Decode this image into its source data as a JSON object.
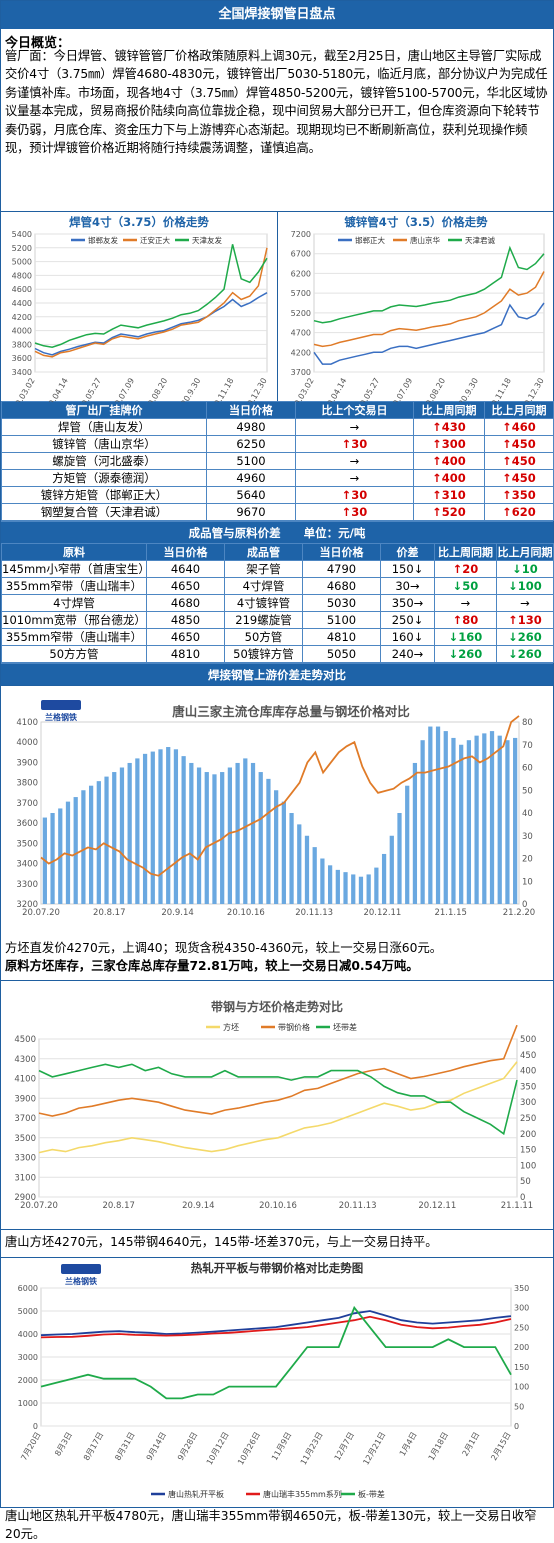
{
  "banner": "全国焊接钢管日盘点",
  "summary": {
    "title": "今日概览：",
    "text": "管厂面：今日焊管、镀锌管管厂价格政策随原料上调30元，截至2月25日，唐山地区主导管厂实际成交价4寸（3.75㎜）焊管4680-4830元，镀锌管出厂5030-5180元，临近月底，部分协议户为完成任务谨慎补库。市场面，现各地4寸（3.75㎜）焊管4850-5200元，镀锌管5100-5700元，华北区域协议量基本完成，贸易商报价陆续向高位靠拢企稳，现中间贸易大部分已开工，但仓库资源向下轮转节奏仍弱，月底仓库、资金压力下与上游博弈心态渐起。现期现均已不断刷新高位，获利兑现操作频现，预计焊镀管价格近期将随行持续震荡调整，谨慎追高。"
  },
  "colors": {
    "banner": "#1e63a8",
    "blue_line": "#3a6fc2",
    "orange_line": "#e07b28",
    "green_line": "#1faa4a",
    "yellow_line": "#f4d96a",
    "bar_blue": "#6aa8e0",
    "red_line": "#e01a1a",
    "navy_line": "#1f3f9a",
    "up": "#d40000",
    "down": "#00a040"
  },
  "chart_data": [
    {
      "type": "line",
      "title": "焊管4寸（3.75）价格走势",
      "x_ticks": [
        "20.03.02",
        "20.04.14",
        "20.05.27",
        "20.07.09",
        "20.08.20",
        "20.9.30",
        "20.11.18",
        "20.12.30"
      ],
      "ylim": [
        3400,
        5400
      ],
      "y_ticks": [
        3400,
        3600,
        3800,
        4000,
        4200,
        4400,
        4600,
        4800,
        5000,
        5200,
        5400
      ],
      "series": [
        {
          "name": "邯郸友发",
          "color": "#3a6fc2",
          "values": [
            3740,
            3680,
            3650,
            3700,
            3730,
            3770,
            3800,
            3830,
            3820,
            3900,
            3950,
            3930,
            3910,
            3950,
            3980,
            4000,
            4050,
            4100,
            4120,
            4150,
            4200,
            4280,
            4350,
            4450,
            4350,
            4400,
            4480,
            4550
          ]
        },
        {
          "name": "迁安正大",
          "color": "#e07b28",
          "values": [
            3700,
            3640,
            3620,
            3680,
            3700,
            3740,
            3780,
            3820,
            3800,
            3880,
            3920,
            3900,
            3880,
            3920,
            3950,
            3980,
            4020,
            4080,
            4100,
            4120,
            4200,
            4300,
            4400,
            4550,
            4450,
            4500,
            4650,
            5200
          ]
        },
        {
          "name": "天津友发",
          "color": "#1faa4a",
          "values": [
            3820,
            3780,
            3760,
            3800,
            3860,
            3900,
            3940,
            3960,
            3950,
            4020,
            4080,
            4060,
            4040,
            4080,
            4110,
            4140,
            4180,
            4230,
            4250,
            4290,
            4380,
            4480,
            4600,
            5250,
            4750,
            4700,
            4850,
            5050
          ]
        }
      ]
    },
    {
      "type": "line",
      "title": "镀锌管4寸（3.5）价格走势",
      "x_ticks": [
        "20.03.02",
        "20.04.14",
        "20.05.27",
        "20.07.09",
        "20.08.20",
        "20.9.30",
        "20.11.18",
        "20.12.30"
      ],
      "ylim": [
        3700,
        7200
      ],
      "y_ticks": [
        3700,
        4200,
        4700,
        5200,
        5700,
        6200,
        6700,
        7200
      ],
      "series": [
        {
          "name": "邯郸正大",
          "color": "#3a6fc2",
          "values": [
            4200,
            3900,
            3900,
            4000,
            4050,
            4100,
            4150,
            4200,
            4200,
            4300,
            4350,
            4350,
            4300,
            4350,
            4400,
            4450,
            4500,
            4550,
            4600,
            4650,
            4700,
            4800,
            4900,
            5400,
            5100,
            5050,
            5150,
            5450
          ]
        },
        {
          "name": "唐山京华",
          "color": "#e07b28",
          "values": [
            4400,
            4350,
            4380,
            4450,
            4500,
            4550,
            4600,
            4650,
            4650,
            4750,
            4800,
            4780,
            4760,
            4800,
            4850,
            4880,
            4920,
            5000,
            5050,
            5100,
            5200,
            5350,
            5500,
            5800,
            5650,
            5700,
            5850,
            6250
          ]
        },
        {
          "name": "天津君诚",
          "color": "#1faa4a",
          "values": [
            5000,
            4950,
            4980,
            5050,
            5100,
            5150,
            5200,
            5250,
            5250,
            5350,
            5400,
            5380,
            5360,
            5400,
            5450,
            5480,
            5520,
            5600,
            5650,
            5700,
            5800,
            5950,
            6100,
            6850,
            6350,
            6300,
            6450,
            6700
          ]
        }
      ]
    },
    {
      "type": "bar",
      "title": "唐山三家主流仓库库存总量与钢坯价格对比",
      "x_ticks": [
        "20.07.20",
        "20.8.17",
        "20.9.14",
        "20.10.16",
        "20.11.13",
        "20.12.11",
        "21.1.15",
        "21.2.20"
      ],
      "ylim": [
        3200,
        4100
      ],
      "y_ticks": [
        3200,
        3300,
        3400,
        3500,
        3600,
        3700,
        3800,
        3900,
        4000,
        4100
      ],
      "y2lim": [
        0,
        80
      ],
      "y2_ticks": [
        0,
        10,
        20,
        30,
        40,
        50,
        60,
        70,
        80
      ],
      "series": [
        {
          "name": "库存（万吨）",
          "axis": "right",
          "color": "#6aa8e0",
          "values": [
            38,
            40,
            42,
            45,
            47,
            50,
            52,
            54,
            56,
            58,
            60,
            62,
            64,
            66,
            67,
            68,
            69,
            68,
            65,
            62,
            60,
            58,
            57,
            58,
            60,
            62,
            64,
            62,
            58,
            55,
            50,
            45,
            40,
            35,
            30,
            25,
            20,
            17,
            15,
            14,
            13,
            12,
            13,
            16,
            22,
            30,
            40,
            52,
            62,
            72,
            78,
            78,
            76,
            73,
            70,
            72,
            74,
            75,
            76,
            74,
            72,
            73
          ]
        },
        {
          "name": "钢坯价格",
          "axis": "left",
          "color": "#e07b28",
          "values": [
            3430,
            3400,
            3420,
            3450,
            3440,
            3460,
            3480,
            3470,
            3500,
            3480,
            3460,
            3420,
            3400,
            3380,
            3350,
            3340,
            3370,
            3400,
            3430,
            3450,
            3420,
            3480,
            3500,
            3520,
            3550,
            3560,
            3580,
            3600,
            3620,
            3650,
            3680,
            3700,
            3750,
            3800,
            3900,
            3950,
            3850,
            3900,
            3950,
            3980,
            4000,
            3880,
            3800,
            3750,
            3760,
            3770,
            3800,
            3820,
            3850,
            3850,
            3860,
            3870,
            3880,
            3900,
            3920,
            3930,
            3900,
            3920,
            3950,
            3980,
            4100,
            4130
          ]
        }
      ]
    },
    {
      "type": "line",
      "title": "带钢与方坯价格走势对比",
      "x_ticks": [
        "20.07.20",
        "20.8.17",
        "20.9.14",
        "20.10.16",
        "20.11.13",
        "20.12.11",
        "21.1.11"
      ],
      "ylim": [
        2900,
        4500
      ],
      "y_ticks": [
        2900,
        3100,
        3300,
        3500,
        3700,
        3900,
        4100,
        4300,
        4500
      ],
      "y2lim": [
        0,
        500
      ],
      "y2_ticks": [
        0,
        50,
        100,
        150,
        200,
        250,
        300,
        350,
        400,
        450,
        500
      ],
      "series": [
        {
          "name": "方坯",
          "axis": "left",
          "color": "#f4d96a",
          "values": [
            3350,
            3380,
            3360,
            3400,
            3420,
            3450,
            3470,
            3500,
            3480,
            3460,
            3430,
            3400,
            3380,
            3360,
            3380,
            3420,
            3450,
            3480,
            3500,
            3550,
            3600,
            3620,
            3650,
            3700,
            3750,
            3800,
            3850,
            3820,
            3780,
            3800,
            3850,
            3880,
            3950,
            4000,
            4050,
            4100,
            4270
          ]
        },
        {
          "name": "带钢价格",
          "axis": "left",
          "color": "#e07b28",
          "values": [
            3750,
            3720,
            3750,
            3800,
            3820,
            3850,
            3880,
            3900,
            3880,
            3860,
            3820,
            3780,
            3760,
            3740,
            3780,
            3800,
            3830,
            3860,
            3880,
            3920,
            3980,
            4000,
            4050,
            4100,
            4150,
            4180,
            4200,
            4150,
            4100,
            4120,
            4150,
            4180,
            4220,
            4250,
            4280,
            4300,
            4640
          ]
        },
        {
          "name": "坯带差",
          "axis": "right",
          "color": "#1faa4a",
          "values": [
            400,
            380,
            390,
            400,
            410,
            420,
            410,
            420,
            400,
            410,
            390,
            380,
            380,
            380,
            400,
            380,
            380,
            380,
            380,
            370,
            380,
            380,
            400,
            400,
            400,
            380,
            350,
            330,
            320,
            320,
            300,
            300,
            270,
            250,
            230,
            200,
            370
          ]
        }
      ]
    },
    {
      "type": "line",
      "title": "热轧开平板与带钢价格对比走势图",
      "x_ticks": [
        "7月20日",
        "8月3日",
        "8月17日",
        "8月31日",
        "9月14日",
        "9月28日",
        "10月12日",
        "10月26日",
        "11月9日",
        "11月23日",
        "12月7日",
        "12月21日",
        "1月4日",
        "1月18日",
        "2月1日",
        "2月15日"
      ],
      "ylim": [
        0,
        6000
      ],
      "y_ticks": [
        0,
        1000,
        2000,
        3000,
        4000,
        5000,
        6000
      ],
      "y2lim": [
        0,
        350
      ],
      "y2_ticks": [
        0,
        50,
        100,
        150,
        200,
        250,
        300,
        350
      ],
      "series": [
        {
          "name": "唐山热轧开平板",
          "axis": "left",
          "color": "#1f3f9a",
          "values": [
            3950,
            3980,
            4000,
            4050,
            4100,
            4120,
            4080,
            4050,
            4000,
            4020,
            4060,
            4100,
            4150,
            4200,
            4250,
            4300,
            4400,
            4500,
            4600,
            4700,
            4900,
            5000,
            4800,
            4600,
            4500,
            4450,
            4500,
            4550,
            4600,
            4700,
            4780
          ]
        },
        {
          "name": "唐山瑞丰355mm系列",
          "axis": "left",
          "color": "#e01a1a",
          "values": [
            3850,
            3870,
            3880,
            3920,
            3980,
            4000,
            3960,
            3950,
            3930,
            3950,
            3980,
            4020,
            4050,
            4100,
            4150,
            4200,
            4250,
            4300,
            4400,
            4500,
            4600,
            4750,
            4600,
            4400,
            4300,
            4250,
            4280,
            4350,
            4400,
            4500,
            4650
          ]
        },
        {
          "name": "板-带差",
          "axis": "right",
          "color": "#1faa4a",
          "values": [
            100,
            110,
            120,
            130,
            120,
            120,
            120,
            100,
            70,
            70,
            80,
            80,
            100,
            100,
            100,
            100,
            150,
            200,
            200,
            200,
            300,
            250,
            200,
            200,
            200,
            200,
            220,
            200,
            200,
            200,
            130
          ]
        }
      ]
    }
  ],
  "table1": {
    "headers": [
      "管厂出厂挂牌价",
      "当日价格",
      "比上个交易日",
      "比上周同期",
      "比上月同期"
    ],
    "rows": [
      {
        "name": "焊管（唐山友发）",
        "price": "4980",
        "d1": "→",
        "d1c": "flat",
        "w": "↑430",
        "wc": "up",
        "m": "↑460",
        "mc": "up"
      },
      {
        "name": "镀锌管（唐山京华）",
        "price": "6250",
        "d1": "↑30",
        "d1c": "up",
        "w": "↑300",
        "wc": "up",
        "m": "↑450",
        "mc": "up"
      },
      {
        "name": "螺旋管（河北盛泰）",
        "price": "5100",
        "d1": "→",
        "d1c": "flat",
        "w": "↑400",
        "wc": "up",
        "m": "↑450",
        "mc": "up"
      },
      {
        "name": "方矩管（源泰德润）",
        "price": "4960",
        "d1": "→",
        "d1c": "flat",
        "w": "↑400",
        "wc": "up",
        "m": "↑450",
        "mc": "up"
      },
      {
        "name": "镀锌方矩管（邯郸正大）",
        "price": "5640",
        "d1": "↑30",
        "d1c": "up",
        "w": "↑310",
        "wc": "up",
        "m": "↑350",
        "mc": "up"
      },
      {
        "name": "钢塑复合管（天津君诚）",
        "price": "9670",
        "d1": "↑30",
        "d1c": "up",
        "w": "↑520",
        "wc": "up",
        "m": "↑620",
        "mc": "up"
      }
    ]
  },
  "section2_title": "成品管与原料价差　　单位：元/吨",
  "table2": {
    "headers": [
      "原料",
      "当日价格",
      "成品管",
      "当日价格",
      "价差",
      "比上周同期",
      "比上月同期"
    ],
    "rows": [
      {
        "raw": "145mm小窄带（首唐宝生）",
        "rp": "4640",
        "prod": "架子管",
        "pp": "4790",
        "diff": "150↓",
        "w": "↑20",
        "wc": "up",
        "m": "↓10",
        "mc": "down"
      },
      {
        "raw": "355mm窄带（唐山瑞丰）",
        "rp": "4650",
        "prod": "4寸焊管",
        "pp": "4680",
        "diff": "30→",
        "w": "↓50",
        "wc": "down",
        "m": "↓100",
        "mc": "down"
      },
      {
        "raw": "4寸焊管",
        "rp": "4680",
        "prod": "4寸镀锌管",
        "pp": "5030",
        "diff": "350→",
        "w": "→",
        "wc": "flat",
        "m": "→",
        "mc": "flat"
      },
      {
        "raw": "1010mm宽带（邢台德龙）",
        "rp": "4850",
        "prod": "219螺旋管",
        "pp": "5100",
        "diff": "250↓",
        "w": "↑80",
        "wc": "up",
        "m": "↑130",
        "mc": "up"
      },
      {
        "raw": "355mm窄带（唐山瑞丰）",
        "rp": "4650",
        "prod": "50方管",
        "pp": "4810",
        "diff": "160↓",
        "w": "↓160",
        "wc": "down",
        "m": "↓260",
        "mc": "down"
      },
      {
        "raw": "50方方管",
        "rp": "4810",
        "prod": "50镀锌方管",
        "pp": "5050",
        "diff": "240→",
        "w": "↓260",
        "wc": "down",
        "m": "↓260",
        "mc": "down"
      }
    ]
  },
  "section3_title": "焊接钢管上游价差走势对比",
  "logo_text": "兰格钢铁",
  "notes": {
    "n1": "方坯直发价4270元，上调40；现货含税4350-4360元，较上一交易日涨60元。",
    "n2": "原料方坯库存，三家仓库总库存量72.81万吨，较上一交易日减0.54万吨。",
    "n3": "唐山方坯4270元，145带钢4640元，145带-坯差370元，与上一交易日持平。",
    "n4": "唐山地区热轧开平板4780元，唐山瑞丰355mm带钢4650元，板-带差130元，较上一交易日收窄20元。"
  }
}
